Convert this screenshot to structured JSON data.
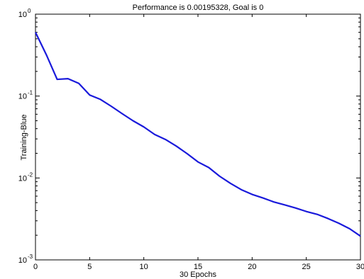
{
  "chart_data": {
    "type": "line",
    "title": "Performance is 0.00195328, Goal is 0",
    "xlabel": "30 Epochs",
    "ylabel": "Training-Blue",
    "xlim": [
      0,
      30
    ],
    "ylim": [
      0.001,
      1
    ],
    "yscale": "log",
    "grid": false,
    "x_ticks": [
      0,
      5,
      10,
      15,
      20,
      25,
      30
    ],
    "y_ticks": [
      {
        "value": 0.001,
        "base": "10",
        "exp": "-3"
      },
      {
        "value": 0.01,
        "base": "10",
        "exp": "-2"
      },
      {
        "value": 0.1,
        "base": "10",
        "exp": "-1"
      },
      {
        "value": 1,
        "base": "10",
        "exp": "0"
      }
    ],
    "series": [
      {
        "color": "#1a1adb",
        "x": [
          0,
          1,
          2,
          3,
          4,
          5,
          6,
          7,
          8,
          9,
          10,
          11,
          12,
          13,
          14,
          15,
          16,
          17,
          18,
          19,
          20,
          21,
          22,
          23,
          24,
          25,
          26,
          27,
          28,
          29,
          30
        ],
        "y": [
          0.6,
          0.32,
          0.16,
          0.163,
          0.143,
          0.103,
          0.091,
          0.075,
          0.061,
          0.05,
          0.042,
          0.034,
          0.0295,
          0.0245,
          0.0198,
          0.0157,
          0.0134,
          0.0105,
          0.0086,
          0.0072,
          0.0063,
          0.0057,
          0.0051,
          0.0047,
          0.0043,
          0.0039,
          0.0036,
          0.0032,
          0.0028,
          0.0024,
          0.00195
        ]
      }
    ]
  }
}
